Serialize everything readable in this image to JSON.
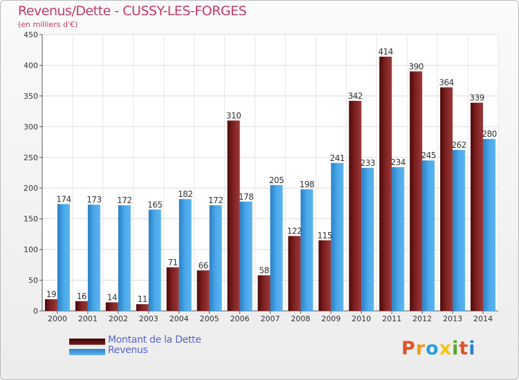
{
  "title": "Revenus/Dette - CUSSY-LES-FORGES",
  "subtitle": "(en milliers d'€)",
  "logo": {
    "text": "Proxiti",
    "colors": [
      "#e0522a",
      "#f39a1c",
      "#27a0d8",
      "#f5c315",
      "#5aa42b",
      "#e0522a",
      "#2d84c5"
    ]
  },
  "colors": {
    "dette": "#7a1a1a",
    "revenus": "#3f9bdd",
    "title": "#bf3a6b",
    "legend_text": "#5a61cf"
  },
  "legend": [
    {
      "label": "Montant de la Dette",
      "color": "#7a1a1a"
    },
    {
      "label": "Revenus",
      "color": "#3f9bdd"
    }
  ],
  "chart_data": {
    "type": "bar",
    "title": "Revenus/Dette - CUSSY-LES-FORGES",
    "subtitle": "(en milliers d'€)",
    "categories": [
      "2000",
      "2001",
      "2002",
      "2003",
      "2004",
      "2005",
      "2006",
      "2007",
      "2008",
      "2009",
      "2010",
      "2011",
      "2012",
      "2013",
      "2014"
    ],
    "series": [
      {
        "name": "Montant de la Dette",
        "values": [
          19,
          16,
          14,
          11,
          71,
          66,
          310,
          58,
          122,
          115,
          342,
          414,
          390,
          364,
          339
        ]
      },
      {
        "name": "Revenus",
        "values": [
          174,
          173,
          172,
          165,
          182,
          172,
          178,
          205,
          198,
          241,
          233,
          234,
          245,
          262,
          280
        ]
      }
    ],
    "ylim": [
      0,
      450
    ],
    "yticks": [
      0,
      50,
      100,
      150,
      200,
      250,
      300,
      350,
      400,
      450
    ],
    "grid": true,
    "legend_position": "bottom-left"
  }
}
